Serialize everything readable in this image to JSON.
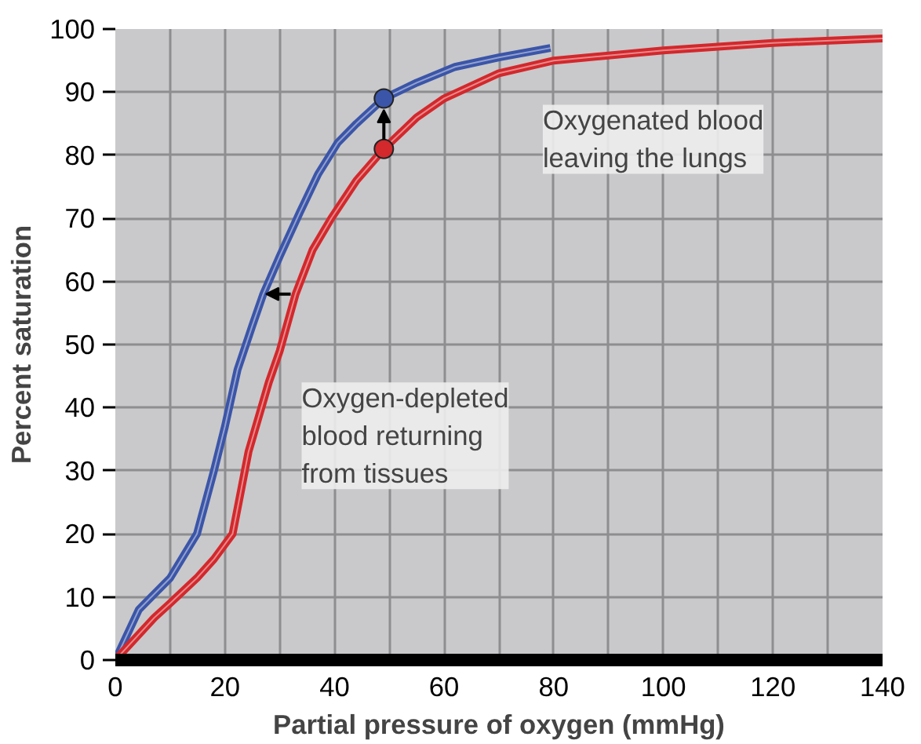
{
  "chart_data": {
    "type": "line",
    "xlabel": "Partial pressure of oxygen (mmHg)",
    "ylabel": "Percent saturation",
    "xlim": [
      0,
      140
    ],
    "ylim": [
      0,
      100
    ],
    "xticks": [
      0,
      {
        "value": 10,
        "label": null
      },
      20,
      {
        "value": 30,
        "label": null
      },
      40,
      {
        "value": 50,
        "label": null
      },
      60,
      {
        "value": 70,
        "label": null
      },
      80,
      {
        "value": 90,
        "label": null
      },
      100,
      {
        "value": 110,
        "label": null
      },
      120,
      {
        "value": 130,
        "label": null
      },
      140
    ],
    "yticks": [
      0,
      10,
      20,
      30,
      40,
      50,
      60,
      70,
      80,
      90,
      100
    ],
    "grid": true,
    "marker": "none",
    "line_style": "solid",
    "series": [
      {
        "color": "#3b55a8",
        "x": [
          0,
          4.3,
          10,
          14.9,
          18,
          20,
          22.3,
          25,
          27,
          30,
          33.7,
          37,
          40.6,
          44,
          49,
          55,
          62,
          70,
          79.4
        ],
        "values": [
          0,
          8,
          13,
          20,
          30,
          37,
          46,
          53,
          58,
          64,
          71,
          77,
          82,
          85,
          89,
          91.5,
          94,
          95.5,
          97
        ]
      },
      {
        "color": "#d3282c",
        "x": [
          0,
          7.1,
          10,
          14.9,
          18,
          21.4,
          24.3,
          28,
          30,
          32.9,
          36,
          39.4,
          44,
          49,
          55,
          60,
          70,
          80,
          100,
          120,
          140
        ],
        "values": [
          0,
          6.7,
          9,
          13,
          16,
          20,
          33,
          44,
          49,
          58,
          65,
          70,
          76,
          81,
          86,
          89,
          93,
          95,
          96.6,
          97.8,
          98.5
        ]
      },
      {
        "type": "scatter",
        "marker": "circle",
        "color": "#3b55a8",
        "x": [
          49
        ],
        "values": [
          89
        ]
      },
      {
        "type": "scatter",
        "marker": "circle",
        "color": "#d3282c",
        "x": [
          49
        ],
        "values": [
          81
        ]
      }
    ],
    "annotations": [
      "Oxygenated blood\nleaving the lungs",
      "Oxygen-depleted\nblood returning\nfrom tissues"
    ]
  }
}
